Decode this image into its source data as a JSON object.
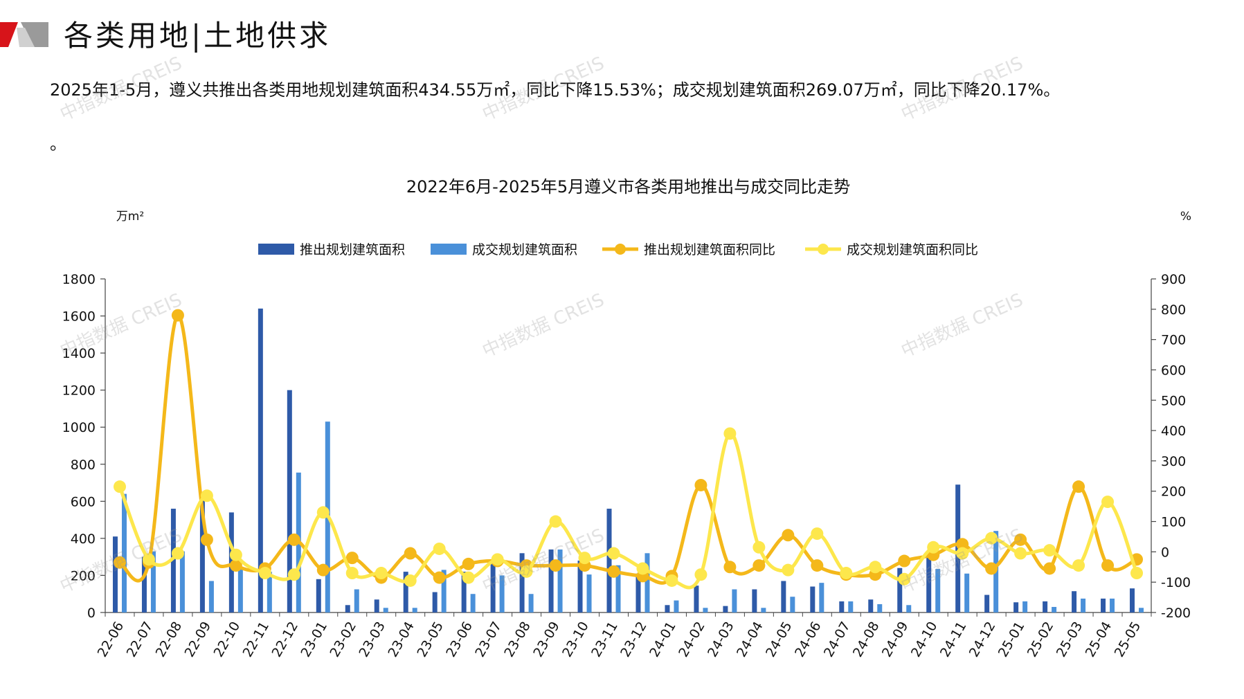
{
  "header": {
    "title": "各类用地|土地供求",
    "summary": "2025年1-5月，遵义共推出各类用地规划建筑面积434.55万㎡，同比下降15.53%；成交规划建筑面积269.07万㎡，同比下降20.17%。",
    "summary_tail": "。",
    "watermark": "中指数据 CREIS"
  },
  "colors": {
    "supply_bar": "#2e5aa8",
    "deal_bar": "#4a90d9",
    "supply_yoy": "#f4b81a",
    "deal_yoy": "#fde74c",
    "logo_red": "#d7141a",
    "logo_grey": "#8c8c8c"
  },
  "chart_data": {
    "type": "bar+line",
    "title": "2022年6月-2025年5月遵义市各类用地推出与成交同比走势",
    "ylabel_left": "万m²",
    "ylabel_right": "%",
    "ylim_left": [
      0,
      1800
    ],
    "ylim_right": [
      -200,
      900
    ],
    "yticks_left": [
      0,
      200,
      400,
      600,
      800,
      1000,
      1200,
      1400,
      1600,
      1800
    ],
    "yticks_right": [
      -200,
      -100,
      0,
      100,
      200,
      300,
      400,
      500,
      600,
      700,
      800,
      900
    ],
    "legend_position": "top-center",
    "categories": [
      "22-06",
      "22-07",
      "22-08",
      "22-09",
      "22-10",
      "22-11",
      "22-12",
      "23-01",
      "23-02",
      "23-03",
      "23-04",
      "23-05",
      "23-06",
      "23-07",
      "23-08",
      "23-09",
      "23-10",
      "23-11",
      "23-12",
      "24-01",
      "24-02",
      "24-03",
      "24-04",
      "24-05",
      "24-06",
      "24-07",
      "24-08",
      "24-09",
      "24-10",
      "24-11",
      "24-12",
      "25-01",
      "25-02",
      "25-03",
      "25-04",
      "25-05"
    ],
    "series": [
      {
        "name": "推出规划建筑面积",
        "type": "bar",
        "axis": "left",
        "values": [
          410,
          300,
          560,
          610,
          540,
          1640,
          1200,
          180,
          40,
          70,
          220,
          110,
          220,
          280,
          320,
          340,
          280,
          560,
          210,
          40,
          145,
          35,
          125,
          170,
          140,
          60,
          70,
          240,
          300,
          690,
          95,
          55,
          60,
          115,
          75,
          130
        ]
      },
      {
        "name": "成交规划建筑面积",
        "type": "bar",
        "axis": "left",
        "values": [
          640,
          330,
          330,
          170,
          240,
          220,
          755,
          1030,
          125,
          25,
          25,
          230,
          100,
          200,
          100,
          340,
          205,
          255,
          320,
          65,
          25,
          125,
          25,
          85,
          160,
          60,
          45,
          40,
          235,
          210,
          440,
          60,
          30,
          75,
          75,
          25
        ]
      },
      {
        "name": "推出规划建筑面积同比",
        "type": "line",
        "axis": "right",
        "values": [
          -35,
          -35,
          780,
          40,
          -45,
          -55,
          40,
          -60,
          -20,
          -85,
          -5,
          -85,
          -40,
          -30,
          -45,
          -45,
          -45,
          -65,
          -80,
          -80,
          220,
          -50,
          -45,
          55,
          -45,
          -75,
          -75,
          -30,
          -10,
          25,
          -55,
          40,
          -55,
          215,
          -45,
          -25
        ]
      },
      {
        "name": "成交规划建筑面积同比",
        "type": "line",
        "axis": "right",
        "values": [
          215,
          -25,
          -5,
          185,
          -10,
          -70,
          -75,
          130,
          -70,
          -70,
          -95,
          10,
          -85,
          -25,
          -65,
          100,
          -20,
          -5,
          -55,
          -95,
          -75,
          390,
          15,
          -60,
          60,
          -70,
          -50,
          -90,
          15,
          -5,
          45,
          -5,
          5,
          -45,
          165,
          -70
        ]
      }
    ]
  }
}
